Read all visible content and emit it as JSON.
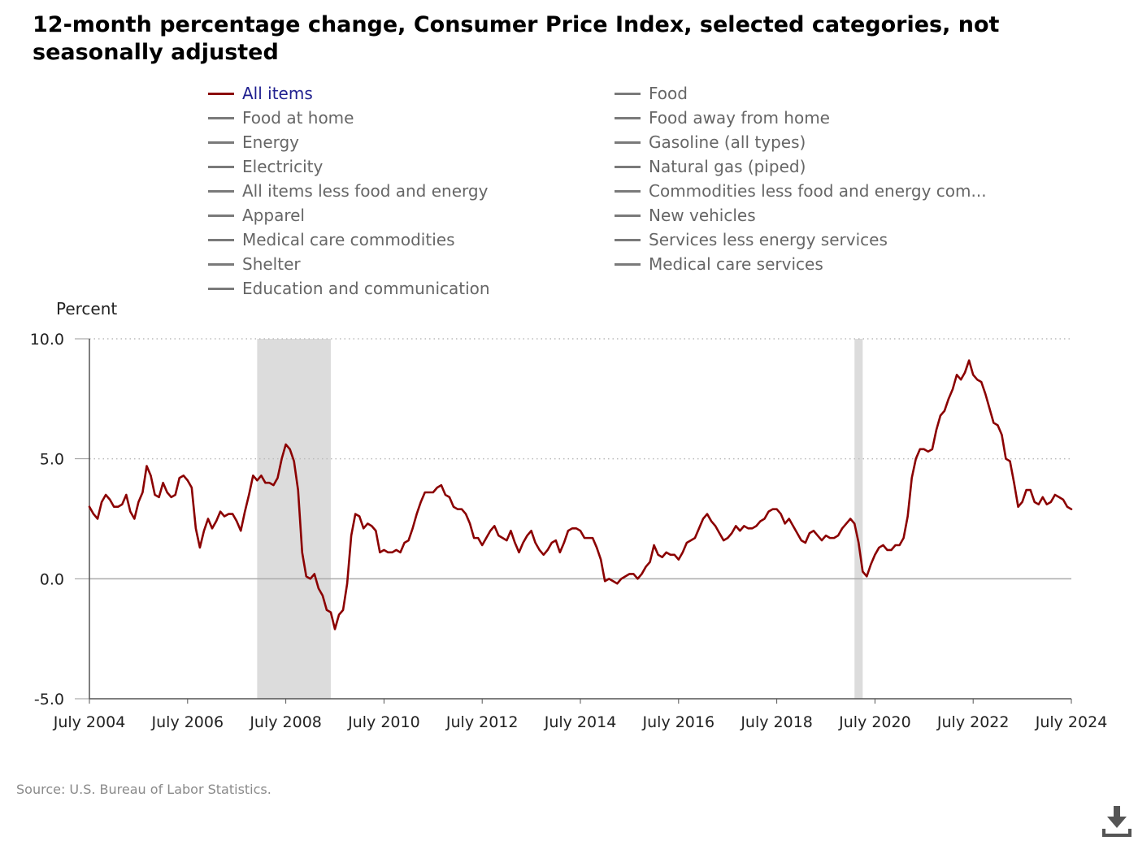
{
  "title": "12-month percentage change, Consumer Price Index, selected categories, not seasonally adjusted",
  "source": "Source: U.S. Bureau of Labor Statistics.",
  "download_icon": "download-icon",
  "colors": {
    "all_items_line": "#8b0000",
    "inactive_series": "#7a7a7a",
    "recession_shade": "#dcdcdc",
    "gridline": "#bbbbbb",
    "axis": "#555555"
  },
  "legend": [
    {
      "label": "All items",
      "active": true
    },
    {
      "label": "Food",
      "active": false
    },
    {
      "label": "Food at home",
      "active": false
    },
    {
      "label": "Food away from home",
      "active": false
    },
    {
      "label": "Energy",
      "active": false
    },
    {
      "label": "Gasoline (all types)",
      "active": false
    },
    {
      "label": "Electricity",
      "active": false
    },
    {
      "label": "Natural gas (piped)",
      "active": false
    },
    {
      "label": "All items less food and energy",
      "active": false
    },
    {
      "label": "Commodities less food and energy com...",
      "active": false
    },
    {
      "label": "Apparel",
      "active": false
    },
    {
      "label": "New vehicles",
      "active": false
    },
    {
      "label": "Medical care commodities",
      "active": false
    },
    {
      "label": "Services less energy services",
      "active": false
    },
    {
      "label": "Shelter",
      "active": false
    },
    {
      "label": "Medical care services",
      "active": false
    },
    {
      "label": "Education and communication",
      "active": false
    }
  ],
  "chart_data": {
    "type": "line",
    "title": "12-month percentage change, Consumer Price Index, selected categories, not seasonally adjusted",
    "ylabel": "Percent",
    "xlabel": "",
    "ylim": [
      -5,
      10
    ],
    "xlim": [
      "2004-07",
      "2024-07"
    ],
    "yticks": [
      "10.0",
      "5.0",
      "0.0",
      "-5.0"
    ],
    "ytick_values": [
      10,
      5,
      0,
      -5
    ],
    "xticks": [
      "July 2004",
      "July 2006",
      "July 2008",
      "July 2010",
      "July 2012",
      "July 2014",
      "July 2016",
      "July 2018",
      "July 2020",
      "July 2022",
      "July 2024"
    ],
    "xtick_values": [
      "2004-07",
      "2006-07",
      "2008-07",
      "2010-07",
      "2012-07",
      "2014-07",
      "2016-07",
      "2018-07",
      "2020-07",
      "2022-07",
      "2024-07"
    ],
    "grid": "horizontal dotted",
    "legend_position": "top",
    "recessions": [
      {
        "start": "2007-12",
        "end": "2009-06"
      },
      {
        "start": "2020-02",
        "end": "2020-04"
      }
    ],
    "series": [
      {
        "name": "All items",
        "start": "2004-07",
        "values": [
          3.0,
          2.7,
          2.5,
          3.2,
          3.5,
          3.3,
          3.0,
          3.0,
          3.1,
          3.5,
          2.8,
          2.5,
          3.2,
          3.6,
          4.7,
          4.3,
          3.5,
          3.4,
          4.0,
          3.6,
          3.4,
          3.5,
          4.2,
          4.3,
          4.1,
          3.8,
          2.1,
          1.3,
          2.0,
          2.5,
          2.1,
          2.4,
          2.8,
          2.6,
          2.7,
          2.7,
          2.4,
          2.0,
          2.8,
          3.5,
          4.3,
          4.1,
          4.3,
          4.0,
          4.0,
          3.9,
          4.2,
          5.0,
          5.6,
          5.4,
          4.9,
          3.7,
          1.1,
          0.1,
          0.0,
          0.2,
          -0.4,
          -0.7,
          -1.3,
          -1.4,
          -2.1,
          -1.5,
          -1.3,
          -0.2,
          1.8,
          2.7,
          2.6,
          2.1,
          2.3,
          2.2,
          2.0,
          1.1,
          1.2,
          1.1,
          1.1,
          1.2,
          1.1,
          1.5,
          1.6,
          2.1,
          2.7,
          3.2,
          3.6,
          3.6,
          3.6,
          3.8,
          3.9,
          3.5,
          3.4,
          3.0,
          2.9,
          2.9,
          2.7,
          2.3,
          1.7,
          1.7,
          1.4,
          1.7,
          2.0,
          2.2,
          1.8,
          1.7,
          1.6,
          2.0,
          1.5,
          1.1,
          1.5,
          1.8,
          2.0,
          1.5,
          1.2,
          1.0,
          1.2,
          1.5,
          1.6,
          1.1,
          1.5,
          2.0,
          2.1,
          2.1,
          2.0,
          1.7,
          1.7,
          1.7,
          1.3,
          0.8,
          -0.1,
          0.0,
          -0.1,
          -0.2,
          0.0,
          0.1,
          0.2,
          0.2,
          0.0,
          0.2,
          0.5,
          0.7,
          1.4,
          1.0,
          0.9,
          1.1,
          1.0,
          1.0,
          0.8,
          1.1,
          1.5,
          1.6,
          1.7,
          2.1,
          2.5,
          2.7,
          2.4,
          2.2,
          1.9,
          1.6,
          1.7,
          1.9,
          2.2,
          2.0,
          2.2,
          2.1,
          2.1,
          2.2,
          2.4,
          2.5,
          2.8,
          2.9,
          2.9,
          2.7,
          2.3,
          2.5,
          2.2,
          1.9,
          1.6,
          1.5,
          1.9,
          2.0,
          1.8,
          1.6,
          1.8,
          1.7,
          1.7,
          1.8,
          2.1,
          2.3,
          2.5,
          2.3,
          1.5,
          0.3,
          0.1,
          0.6,
          1.0,
          1.3,
          1.4,
          1.2,
          1.2,
          1.4,
          1.4,
          1.7,
          2.6,
          4.2,
          5.0,
          5.4,
          5.4,
          5.3,
          5.4,
          6.2,
          6.8,
          7.0,
          7.5,
          7.9,
          8.5,
          8.3,
          8.6,
          9.1,
          8.5,
          8.3,
          8.2,
          7.7,
          7.1,
          6.5,
          6.4,
          6.0,
          5.0,
          4.9,
          4.0,
          3.0,
          3.2,
          3.7,
          3.7,
          3.2,
          3.1,
          3.4,
          3.1,
          3.2,
          3.5,
          3.4,
          3.3,
          3.0,
          2.9
        ]
      }
    ]
  }
}
